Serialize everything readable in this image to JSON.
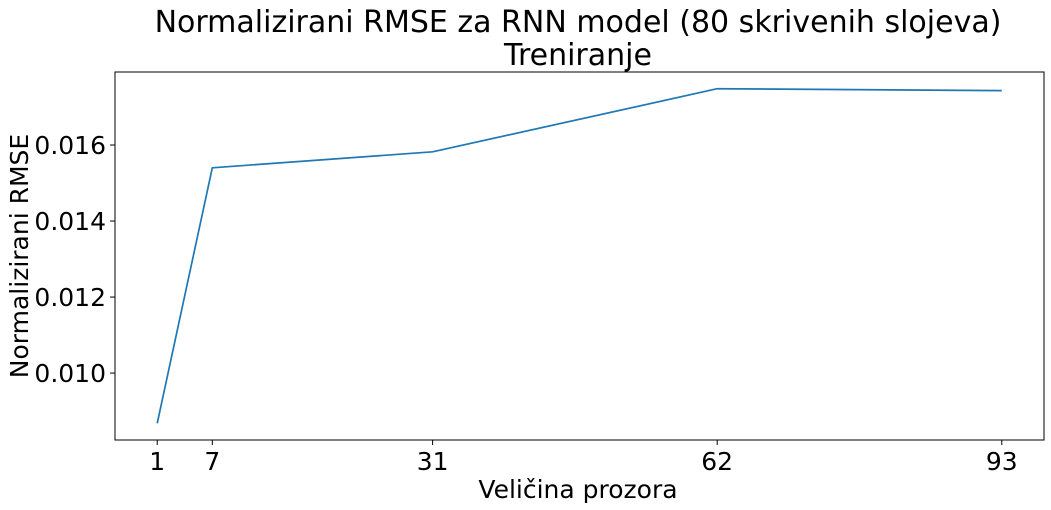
{
  "chart_data": {
    "type": "line",
    "title": "Normalizirani RMSE za RNN model (80 skrivenih slojeva)",
    "subtitle": "Treniranje",
    "xlabel": "Veličina prozora",
    "ylabel": "Normalizirani RMSE",
    "x": [
      1,
      7,
      31,
      62,
      93
    ],
    "series": [
      {
        "values": [
          0.00868,
          0.0154,
          0.01582,
          0.01748,
          0.01743
        ]
      }
    ],
    "x_ticks": [
      1,
      7,
      31,
      62,
      93
    ],
    "x_tick_labels": [
      "1",
      "7",
      "31",
      "62",
      "93"
    ],
    "y_ticks": [
      0.01,
      0.012,
      0.014,
      0.016
    ],
    "y_tick_labels": [
      "0.010",
      "0.012",
      "0.014",
      "0.016"
    ],
    "xlim": [
      -3.6,
      97.6
    ],
    "ylim": [
      0.00824,
      0.01792
    ],
    "grid": false,
    "legend": false,
    "colors": {
      "line": "#1f77b4",
      "axes": "#000000",
      "background": "#ffffff"
    }
  }
}
